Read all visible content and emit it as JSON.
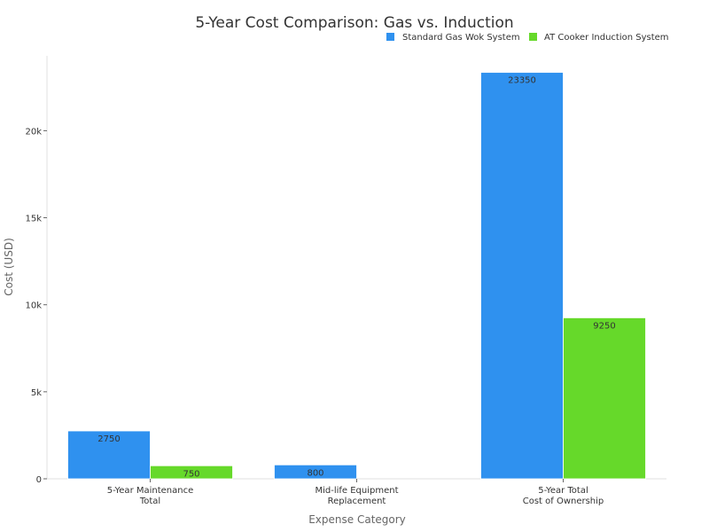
{
  "chart_data": {
    "type": "bar",
    "title": "5-Year Cost Comparison: Gas vs. Induction",
    "xlabel": "Expense Category",
    "ylabel": "Cost (USD)",
    "categories": [
      [
        "5-Year Maintenance",
        "Total"
      ],
      [
        "Mid-life Equipment",
        "Replacement"
      ],
      [
        "5-Year Total",
        "Cost of Ownership"
      ]
    ],
    "series": [
      {
        "name": "Standard Gas Wok System",
        "color": "#2f91ef",
        "values": [
          2750,
          800,
          23350
        ]
      },
      {
        "name": "AT Cooker Induction System",
        "color": "#66d92a",
        "values": [
          750,
          0,
          9250
        ]
      }
    ],
    "ylim": [
      0,
      24300
    ],
    "yticks": [
      0,
      5000,
      10000,
      15000,
      20000
    ],
    "ytick_labels": [
      "0",
      "5k",
      "10k",
      "15k",
      "20k"
    ],
    "legend_position": "top-right",
    "grid": false
  }
}
